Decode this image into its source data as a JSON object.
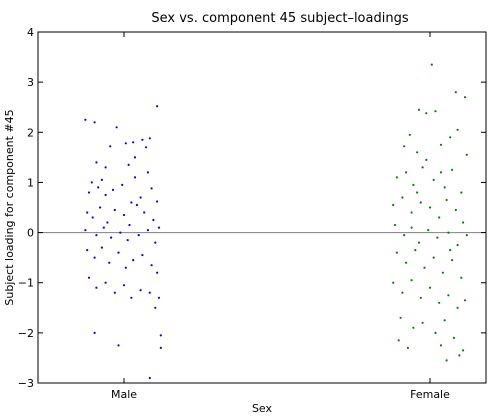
{
  "chart_data": {
    "type": "scatter",
    "title": "Sex vs. component 45 subject–loadings",
    "xlabel": "Sex",
    "ylabel": "Subject loading for component #45",
    "categories": [
      "Male",
      "Female"
    ],
    "ylim": [
      -3,
      4
    ],
    "yticks": [
      "−3",
      "−2",
      "−1",
      "0",
      "1",
      "2",
      "3",
      "4"
    ],
    "reference_line_y": 0,
    "grid": false,
    "series": [
      {
        "category": "Male",
        "color": "#0000ff",
        "points": [
          [
            -0.42,
            2.25
          ],
          [
            -0.32,
            2.2
          ],
          [
            -0.08,
            2.1
          ],
          [
            0.36,
            2.52
          ],
          [
            -0.3,
            1.4
          ],
          [
            -0.2,
            1.3
          ],
          [
            0.05,
            1.35
          ],
          [
            0.28,
            1.88
          ],
          [
            0.2,
            1.85
          ],
          [
            0.1,
            1.8
          ],
          [
            -0.15,
            1.72
          ],
          [
            0.02,
            1.78
          ],
          [
            0.12,
            1.5
          ],
          [
            0.24,
            1.7
          ],
          [
            -0.38,
            0.8
          ],
          [
            -0.35,
            1.0
          ],
          [
            -0.28,
            0.9
          ],
          [
            -0.2,
            0.75
          ],
          [
            -0.12,
            0.85
          ],
          [
            -0.02,
            0.95
          ],
          [
            0.08,
            0.6
          ],
          [
            0.18,
            0.7
          ],
          [
            0.3,
            0.88
          ],
          [
            0.36,
            0.62
          ],
          [
            -0.4,
            0.4
          ],
          [
            -0.34,
            0.3
          ],
          [
            -0.26,
            0.5
          ],
          [
            -0.18,
            0.2
          ],
          [
            -0.1,
            0.45
          ],
          [
            0.0,
            0.35
          ],
          [
            0.06,
            0.15
          ],
          [
            0.14,
            0.55
          ],
          [
            0.22,
            0.4
          ],
          [
            0.32,
            0.25
          ],
          [
            0.38,
            0.1
          ],
          [
            -0.42,
            0.05
          ],
          [
            -0.3,
            -0.05
          ],
          [
            -0.22,
            0.1
          ],
          [
            -0.14,
            -0.1
          ],
          [
            -0.04,
            0.0
          ],
          [
            0.04,
            -0.15
          ],
          [
            0.16,
            -0.05
          ],
          [
            0.26,
            0.05
          ],
          [
            0.34,
            -0.2
          ],
          [
            -0.4,
            -0.35
          ],
          [
            -0.32,
            -0.5
          ],
          [
            -0.24,
            -0.3
          ],
          [
            -0.16,
            -0.6
          ],
          [
            -0.06,
            -0.4
          ],
          [
            0.02,
            -0.7
          ],
          [
            0.1,
            -0.55
          ],
          [
            0.2,
            -0.45
          ],
          [
            0.3,
            -0.65
          ],
          [
            0.36,
            -0.8
          ],
          [
            -0.38,
            -0.9
          ],
          [
            -0.3,
            -1.1
          ],
          [
            -0.2,
            -1.0
          ],
          [
            -0.1,
            -1.2
          ],
          [
            0.0,
            -1.05
          ],
          [
            0.08,
            -1.3
          ],
          [
            0.18,
            -1.15
          ],
          [
            0.28,
            -1.2
          ],
          [
            0.34,
            -1.5
          ],
          [
            0.38,
            -1.3
          ],
          [
            -0.32,
            -2.0
          ],
          [
            -0.06,
            -2.25
          ],
          [
            0.4,
            -2.05
          ],
          [
            0.4,
            -2.3
          ],
          [
            0.28,
            -2.9
          ],
          [
            -0.24,
            1.05
          ],
          [
            0.12,
            1.1
          ],
          [
            0.26,
            1.2
          ]
        ]
      },
      {
        "category": "Female",
        "color": "#008000",
        "points": [
          [
            0.02,
            3.35
          ],
          [
            0.38,
            2.7
          ],
          [
            0.28,
            2.8
          ],
          [
            -0.12,
            2.45
          ],
          [
            0.06,
            2.42
          ],
          [
            -0.04,
            2.38
          ],
          [
            0.3,
            2.05
          ],
          [
            0.22,
            1.9
          ],
          [
            -0.22,
            1.95
          ],
          [
            -0.28,
            1.72
          ],
          [
            -0.14,
            1.6
          ],
          [
            0.12,
            1.75
          ],
          [
            0.4,
            1.55
          ],
          [
            -0.36,
            1.1
          ],
          [
            -0.26,
            1.2
          ],
          [
            -0.18,
            0.95
          ],
          [
            -0.08,
            1.3
          ],
          [
            0.04,
            1.05
          ],
          [
            0.16,
            0.9
          ],
          [
            0.24,
            1.25
          ],
          [
            0.34,
            0.8
          ],
          [
            -0.4,
            0.55
          ],
          [
            -0.3,
            0.7
          ],
          [
            -0.2,
            0.4
          ],
          [
            -0.1,
            0.6
          ],
          [
            0.0,
            0.5
          ],
          [
            0.1,
            0.3
          ],
          [
            0.18,
            0.65
          ],
          [
            0.28,
            0.45
          ],
          [
            0.36,
            0.2
          ],
          [
            -0.38,
            0.15
          ],
          [
            -0.28,
            -0.05
          ],
          [
            -0.2,
            0.1
          ],
          [
            -0.12,
            -0.2
          ],
          [
            -0.02,
            0.05
          ],
          [
            0.08,
            -0.1
          ],
          [
            0.2,
            0.0
          ],
          [
            0.3,
            -0.25
          ],
          [
            0.4,
            -0.05
          ],
          [
            -0.36,
            -0.4
          ],
          [
            -0.26,
            -0.6
          ],
          [
            -0.16,
            -0.35
          ],
          [
            -0.06,
            -0.7
          ],
          [
            0.04,
            -0.5
          ],
          [
            0.14,
            -0.8
          ],
          [
            0.24,
            -0.55
          ],
          [
            0.34,
            -0.9
          ],
          [
            -0.4,
            -1.0
          ],
          [
            -0.3,
            -1.2
          ],
          [
            -0.2,
            -0.95
          ],
          [
            -0.1,
            -1.3
          ],
          [
            0.0,
            -1.1
          ],
          [
            0.1,
            -1.4
          ],
          [
            0.2,
            -1.25
          ],
          [
            0.3,
            -1.5
          ],
          [
            0.38,
            -1.35
          ],
          [
            -0.32,
            -1.7
          ],
          [
            -0.18,
            -1.9
          ],
          [
            -0.08,
            -1.8
          ],
          [
            0.06,
            -2.0
          ],
          [
            0.16,
            -1.75
          ],
          [
            0.26,
            -2.1
          ],
          [
            -0.34,
            -2.15
          ],
          [
            -0.24,
            -2.3
          ],
          [
            0.12,
            -2.25
          ],
          [
            0.36,
            -2.35
          ],
          [
            0.18,
            -2.55
          ],
          [
            0.32,
            -2.45
          ],
          [
            -0.04,
            1.45
          ],
          [
            0.22,
            -0.35
          ],
          [
            -0.14,
            0.8
          ],
          [
            0.12,
            1.2
          ]
        ]
      }
    ]
  }
}
